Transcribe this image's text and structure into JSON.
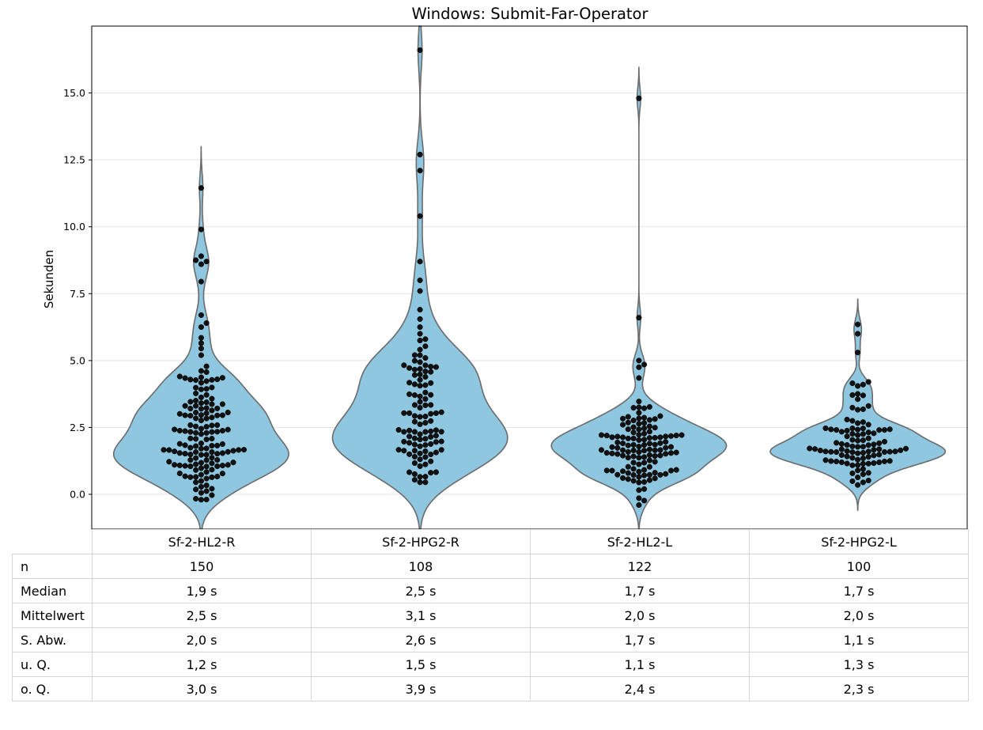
{
  "chart_data": {
    "type": "violin",
    "title": "Windows: Submit-Far-Operator",
    "ylabel": "Sekunden",
    "ylim": [
      -1.3,
      17.5
    ],
    "yticks": [
      "0.0",
      "2.5",
      "5.0",
      "7.5",
      "10.0",
      "12.5",
      "15.0"
    ],
    "grid": "horizontal",
    "colors": {
      "violin_fill": "#8fc7e0",
      "violin_edge": "#6b6b6b",
      "point": "#111111"
    },
    "categories": [
      "Sf-2-HL2-R",
      "Sf-2-HPG2-R",
      "Sf-2-HL2-L",
      "Sf-2-HPG2-L"
    ],
    "series": [
      {
        "category": "Sf-2-HL2-R",
        "n": 150,
        "median": 1.9,
        "mean": 2.5,
        "sd": 2.0,
        "q1": 1.2,
        "q3": 3.0,
        "min": -0.2,
        "max": 11.45,
        "outliers": [
          11.45,
          9.9,
          8.9,
          8.75,
          8.7,
          8.6,
          7.95,
          6.7,
          6.4,
          6.25,
          5.85,
          5.65,
          5.45,
          5.2
        ]
      },
      {
        "category": "Sf-2-HPG2-R",
        "n": 108,
        "median": 2.5,
        "mean": 3.1,
        "sd": 2.6,
        "q1": 1.5,
        "q3": 3.9,
        "min": 0.45,
        "max": 16.6,
        "outliers": [
          16.6,
          12.7,
          12.1,
          10.4,
          8.7,
          8.0,
          7.6,
          6.9,
          6.55,
          6.25,
          6.0,
          5.8,
          5.75
        ]
      },
      {
        "category": "Sf-2-HL2-L",
        "n": 122,
        "median": 1.7,
        "mean": 2.0,
        "sd": 1.7,
        "q1": 1.1,
        "q3": 2.4,
        "min": -0.4,
        "max": 14.8,
        "outliers": [
          14.8,
          6.6,
          5.0,
          4.85,
          4.75,
          4.35
        ]
      },
      {
        "category": "Sf-2-HPG2-L",
        "n": 100,
        "median": 1.7,
        "mean": 2.0,
        "sd": 1.1,
        "q1": 1.3,
        "q3": 2.3,
        "min": 0.35,
        "max": 6.35,
        "outliers": [
          6.35,
          6.0,
          5.3,
          4.2,
          4.15,
          4.1,
          4.05
        ]
      }
    ]
  },
  "table": {
    "columns": [
      "Sf-2-HL2-R",
      "Sf-2-HPG2-R",
      "Sf-2-HL2-L",
      "Sf-2-HPG2-L"
    ],
    "rows": [
      {
        "label": "n",
        "values": [
          "150",
          "108",
          "122",
          "100"
        ]
      },
      {
        "label": "Median",
        "values": [
          "1,9 s",
          "2,5 s",
          "1,7 s",
          "1,7 s"
        ]
      },
      {
        "label": "Mittelwert",
        "values": [
          "2,5 s",
          "3,1 s",
          "2,0 s",
          "2,0 s"
        ]
      },
      {
        "label": "S. Abw.",
        "values": [
          "2,0 s",
          "2,6 s",
          "1,7 s",
          "1,1 s"
        ]
      },
      {
        "label": "u. Q.",
        "values": [
          "1,2 s",
          "1,5 s",
          "1,1 s",
          "1,3 s"
        ]
      },
      {
        "label": "o. Q.",
        "values": [
          "3,0 s",
          "3,9 s",
          "2,4 s",
          "2,3 s"
        ]
      }
    ]
  }
}
